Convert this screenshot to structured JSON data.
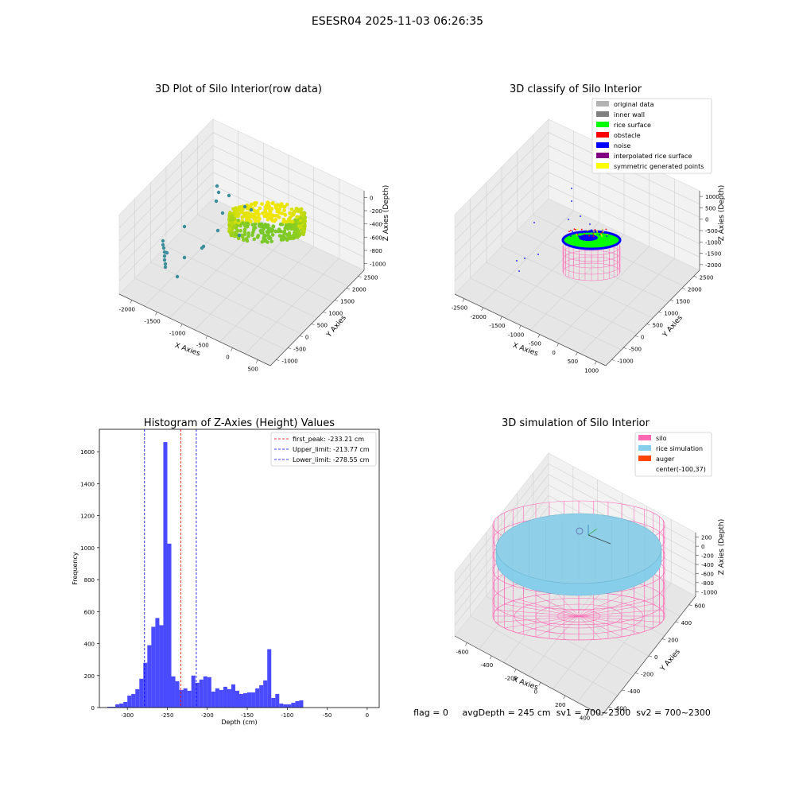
{
  "suptitle": "ESESR04 2025-11-03 06:26:35",
  "status_line": "flag = 0     avgDepth = 245 cm  sv1 = 700~2300  sv2 = 700~2300",
  "chart_data": [
    {
      "type": "scatter",
      "title": "3D Plot of Silo Interior(row data)",
      "xlabel": "X Axies",
      "ylabel": "Y Axies",
      "zlabel": "Z Axies (Depth)",
      "x_ticks": [
        "-2000",
        "-1500",
        "-1000",
        "-500",
        "0",
        "500"
      ],
      "y_ticks": [
        "-1000",
        "-500",
        "0",
        "500",
        "1000",
        "1500",
        "2000",
        "2500"
      ],
      "z_ticks": [
        "0",
        "-200",
        "-400",
        "-600",
        "-800",
        "-1000"
      ],
      "grid": true
    },
    {
      "type": "scatter",
      "title": "3D classify of Silo Interior",
      "xlabel": "X Axies",
      "ylabel": "Y Axies",
      "zlabel": "Z Axies (Depth)",
      "x_ticks": [
        "-2500",
        "-2000",
        "-1500",
        "-1000",
        "-500",
        "0",
        "500",
        "1000"
      ],
      "y_ticks": [
        "-1000",
        "-500",
        "0",
        "500",
        "1000",
        "1500",
        "2000",
        "2500"
      ],
      "z_ticks": [
        "1000",
        "500",
        "0",
        "-500",
        "-1000",
        "-1500",
        "-2000"
      ],
      "z_hidden_tick": "1500",
      "legend": [
        {
          "label": "original data",
          "color": "#b3b3b3"
        },
        {
          "label": "inner wall",
          "color": "#808080"
        },
        {
          "label": "rice surface",
          "color": "#00ff00"
        },
        {
          "label": "obstacle",
          "color": "#ff0000"
        },
        {
          "label": "noise",
          "color": "#0000ff"
        },
        {
          "label": "interpolated rice surface",
          "color": "#800080"
        },
        {
          "label": "symmetric generated points",
          "color": "#ffff00"
        }
      ],
      "legend_loc": "top-right",
      "grid": true
    },
    {
      "type": "bar",
      "title": "Histogram of Z-Axies (Height) Values",
      "xlabel": "Depth (cm)",
      "ylabel": "Frequency",
      "xlim": [
        -335,
        15
      ],
      "ylim": [
        0,
        1740
      ],
      "x_ticks": [
        -300,
        -250,
        -200,
        -150,
        -100,
        -50,
        0
      ],
      "y_ticks": [
        0,
        200,
        400,
        600,
        800,
        1000,
        1200,
        1400,
        1600
      ],
      "bin_start": -325,
      "bin_width": 5,
      "values": [
        5,
        5,
        20,
        25,
        35,
        75,
        85,
        115,
        180,
        280,
        390,
        505,
        560,
        515,
        1660,
        1025,
        195,
        165,
        110,
        120,
        105,
        200,
        155,
        175,
        195,
        190,
        100,
        120,
        110,
        130,
        115,
        145,
        105,
        85,
        90,
        95,
        95,
        120,
        140,
        170,
        365,
        60,
        85,
        25,
        20,
        20,
        30,
        40,
        45
      ],
      "bar_color": "#4040ff",
      "lines": [
        {
          "label": "first_peak: -233.21 cm",
          "value": -233.21,
          "color": "#ff0000"
        },
        {
          "label": "Upper_limit: -213.77 cm",
          "value": -213.77,
          "color": "#0000ff"
        },
        {
          "label": "Lower_limit: -278.55 cm",
          "value": -278.55,
          "color": "#0000ff"
        }
      ],
      "legend_loc": "top-right"
    },
    {
      "type": "scatter",
      "title": "3D simulation of Silo Interior",
      "xlabel": "X Axies",
      "ylabel": "Y Axies",
      "zlabel": "Z Axies (Depth)",
      "x_ticks": [
        "-600",
        "-400",
        "-200",
        "0",
        "200",
        "400"
      ],
      "y_ticks": [
        "-600",
        "-400",
        "-200",
        "0",
        "200",
        "400",
        "600"
      ],
      "z_ticks": [
        "200",
        "0",
        "-200",
        "-400",
        "-600",
        "-800",
        "-1000"
      ],
      "legend": [
        {
          "label": "silo",
          "color": "#ff69b4"
        },
        {
          "label": "rice simulation",
          "color": "#87ceeb"
        },
        {
          "label": "auger",
          "color": "#ff4500"
        },
        {
          "label": "center(-100,37)",
          "color": ""
        }
      ],
      "legend_loc": "top-right",
      "grid": true
    }
  ]
}
